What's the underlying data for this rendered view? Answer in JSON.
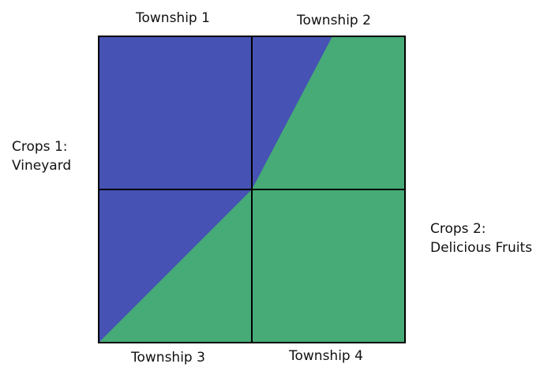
{
  "townships": {
    "t1": "Township 1",
    "t2": "Township 2",
    "t3": "Township 3",
    "t4": "Township 4"
  },
  "crops": {
    "crops1_line1": "Crops 1:",
    "crops1_line2": "Vineyard",
    "crops2_line1": "Crops 2:",
    "crops2_line2": "Delicious Fruits"
  },
  "colors": {
    "vineyard": "#4652b4",
    "fruits": "#46ab76",
    "grid": "#000000"
  }
}
